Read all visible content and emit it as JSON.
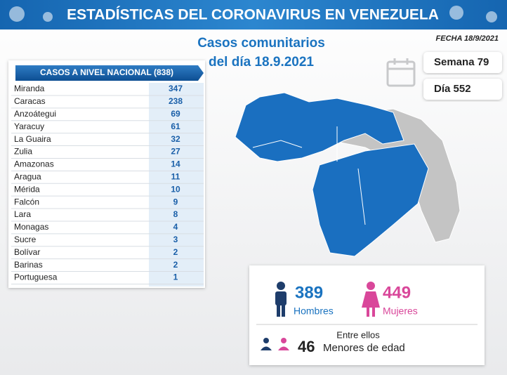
{
  "header": {
    "title": "ESTADÍSTICAS DEL CORONAVIRUS EN VENEZUELA",
    "date": "FECHA 18/9/2021"
  },
  "subtitle": [
    "Casos comunitarios",
    "del día 18.9.2021"
  ],
  "week": "Semana 79",
  "day": "Día 552",
  "table": {
    "title": "CASOS A NIVEL NACIONAL (838)",
    "rows": [
      [
        "Miranda",
        347
      ],
      [
        "Caracas",
        238
      ],
      [
        "Anzoátegui",
        69
      ],
      [
        "Yaracuy",
        61
      ],
      [
        "La Guaira",
        32
      ],
      [
        "Zulia",
        27
      ],
      [
        "Amazonas",
        14
      ],
      [
        "Aragua",
        11
      ],
      [
        "Mérida",
        10
      ],
      [
        "Falcón",
        9
      ],
      [
        "Lara",
        8
      ],
      [
        "Monagas",
        4
      ],
      [
        "Sucre",
        3
      ],
      [
        "Bolívar",
        2
      ],
      [
        "Barinas",
        2
      ],
      [
        "Portuguesa",
        1
      ]
    ]
  },
  "gender": {
    "men": {
      "value": 389,
      "label": "Hombres"
    },
    "women": {
      "value": 449,
      "label": "Mujeres"
    }
  },
  "minors": {
    "intro": "Entre ellos",
    "value": 46,
    "label": "Menores de edad"
  }
}
